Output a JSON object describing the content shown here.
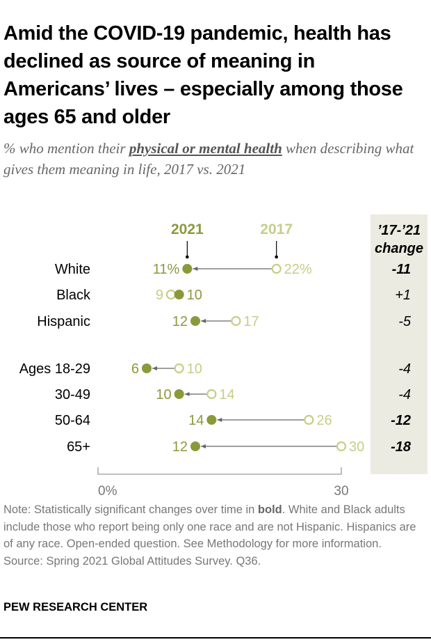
{
  "title": "Amid the COVID-19 pandemic, health has declined as source of meaning in Americans’ lives – especially among those ages 65 and older",
  "subtitle": {
    "prefix": "% who mention their ",
    "highlight": "physical or mental health",
    "suffix": " when describing what gives them meaning in life, 2017 vs. 2021"
  },
  "note": {
    "prefix": "Note: Statistically significant changes over time in ",
    "bold": "bold",
    "suffix": ". White and Black adults include those who report being only one race and are not Hispanic. Hispanics are of any race. Open-ended question. See Methodology for more information.",
    "source": "Source: Spring 2021 Global Attitudes Survey. Q36."
  },
  "brand": "PEW RESEARCH CENTER",
  "colors": {
    "y2021": "#8a9a3b",
    "y2017": "#c3cf87",
    "arrow": "#666666",
    "shade": "#ebebe1"
  },
  "chart_data": {
    "type": "dot-arrow",
    "legend": {
      "y2021": "2021",
      "y2017": "2017"
    },
    "change_header": [
      "’17-’21",
      "change"
    ],
    "xlim": [
      0,
      30
    ],
    "x_ticks": [
      "0%",
      "30"
    ],
    "rows": [
      {
        "category": "White",
        "v2017": 22,
        "v2021": 11,
        "label2017": "22%",
        "label2021": "11%",
        "change": "-11",
        "significant": true,
        "group": 0
      },
      {
        "category": "Black",
        "v2017": 9,
        "v2021": 10,
        "label2017": "9",
        "label2021": "10",
        "change": "+1",
        "significant": false,
        "group": 0
      },
      {
        "category": "Hispanic",
        "v2017": 17,
        "v2021": 12,
        "label2017": "17",
        "label2021": "12",
        "change": "-5",
        "significant": false,
        "group": 0
      },
      {
        "category": "Ages 18-29",
        "v2017": 10,
        "v2021": 6,
        "label2017": "10",
        "label2021": "6",
        "change": "-4",
        "significant": false,
        "group": 1
      },
      {
        "category": "30-49",
        "v2017": 14,
        "v2021": 10,
        "label2017": "14",
        "label2021": "10",
        "change": "-4",
        "significant": false,
        "group": 1
      },
      {
        "category": "50-64",
        "v2017": 26,
        "v2021": 14,
        "label2017": "26",
        "label2021": "14",
        "change": "-12",
        "significant": true,
        "group": 1
      },
      {
        "category": "65+",
        "v2017": 30,
        "v2021": 12,
        "label2017": "30",
        "label2021": "12",
        "change": "-18",
        "significant": true,
        "group": 1
      }
    ]
  }
}
